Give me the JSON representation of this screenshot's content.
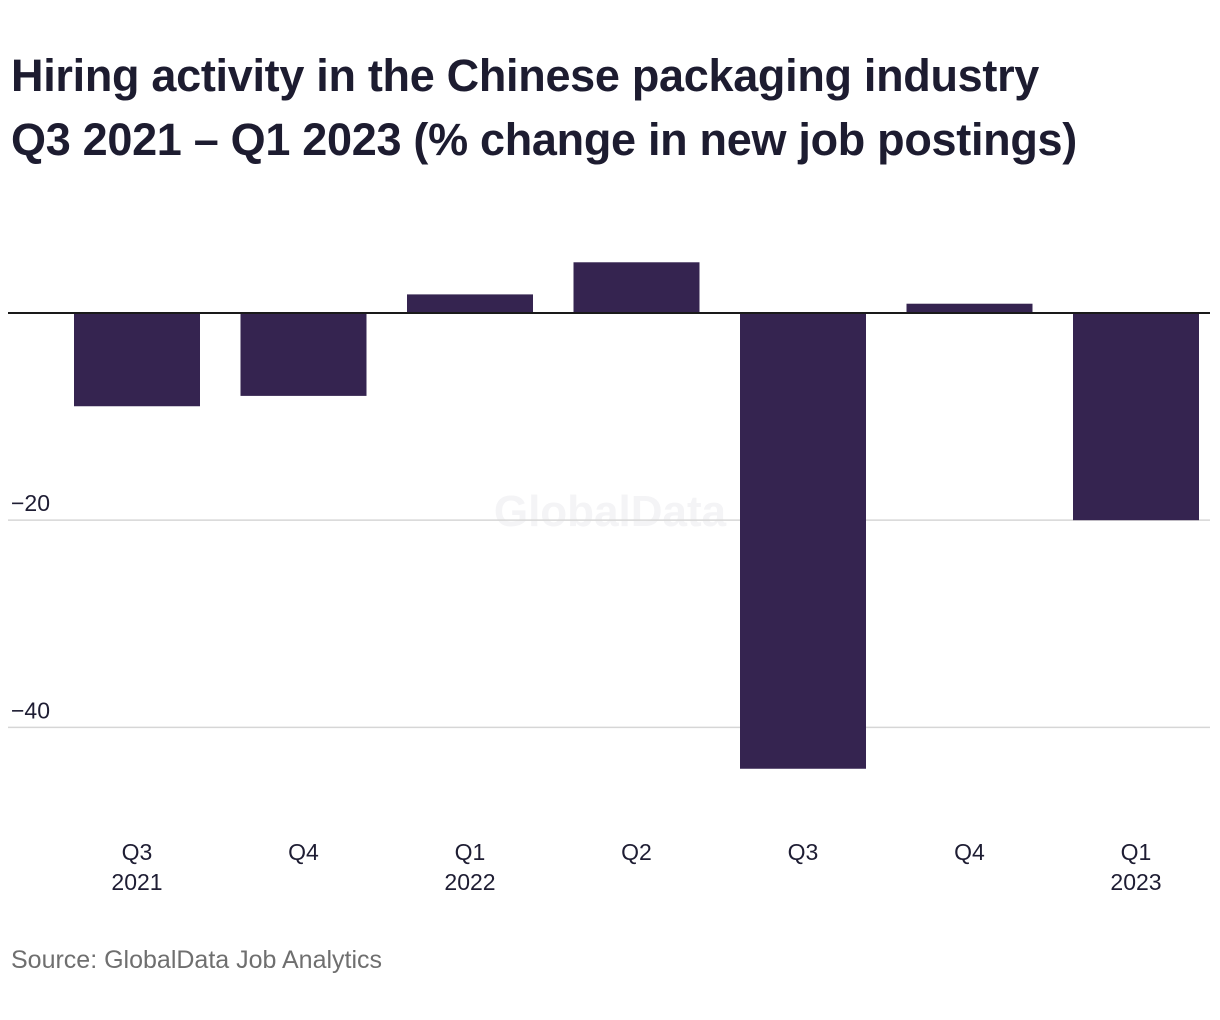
{
  "title_line1": "Hiring activity in the Chinese packaging industry",
  "title_line2": "Q3 2021 – Q1 2023 (% change in new job postings)",
  "source": "Source: GlobalData Job Analytics",
  "watermark": "GlobalData",
  "colors": {
    "bar": "#352450",
    "zero_line": "#1a1a1a",
    "grid": "#d6d6d6",
    "text": "#1e1d33",
    "source_text": "#6f6f6f"
  },
  "chart_data": {
    "type": "bar",
    "categories": [
      [
        "Q3",
        "2021"
      ],
      [
        "Q4",
        ""
      ],
      [
        "Q1",
        "2022"
      ],
      [
        "Q2",
        ""
      ],
      [
        "Q3",
        ""
      ],
      [
        "Q4",
        ""
      ],
      [
        "Q1",
        "2023"
      ]
    ],
    "values": [
      -9,
      -8,
      1.8,
      4.9,
      -44,
      0.9,
      -20
    ],
    "ylim": [
      -47.5,
      8.5
    ],
    "yticks": [
      -20,
      -40
    ],
    "ytick_labels": [
      "−20",
      "−40"
    ],
    "grid": true,
    "legend": "none"
  }
}
